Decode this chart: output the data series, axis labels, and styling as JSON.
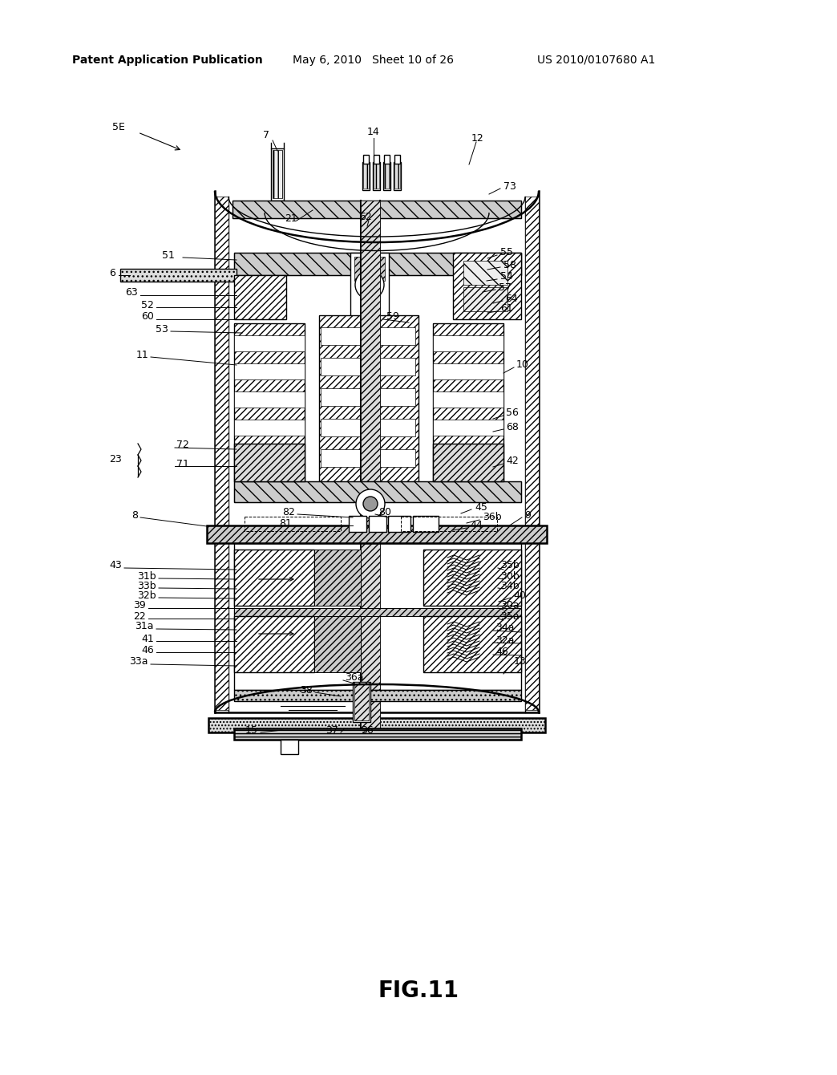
{
  "title": "FIG.11",
  "header_left": "Patent Application Publication",
  "header_mid": "May 6, 2010   Sheet 10 of 26",
  "header_right": "US 2010/0107680 A1",
  "fig_label": "FIG.11",
  "bg_color": "#ffffff",
  "drawing_color": "#000000"
}
